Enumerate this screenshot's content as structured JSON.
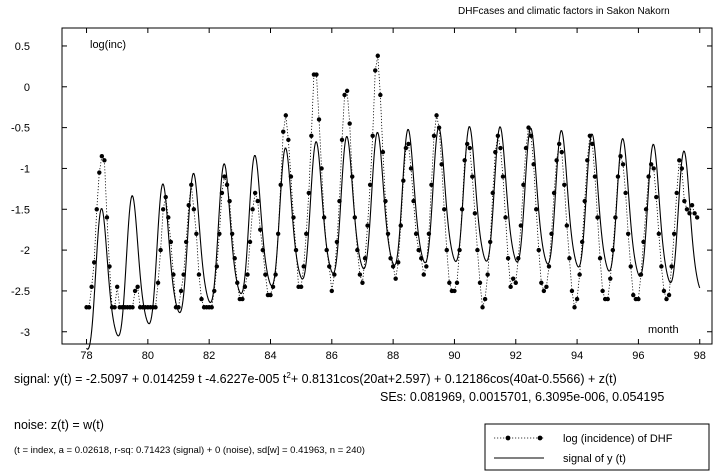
{
  "header": {
    "title": "DHFcases and climatic factors in Sakon Nakorn"
  },
  "chart_data": {
    "type": "line",
    "title": "",
    "ylabel": "log(inc)",
    "xlabel": "month",
    "xlim": [
      77.2,
      98.4
    ],
    "ylim": [
      -3.15,
      0.72
    ],
    "x_ticks": [
      78,
      80,
      82,
      84,
      86,
      88,
      90,
      92,
      94,
      96,
      98
    ],
    "y_ticks": [
      0.5,
      0,
      -0.5,
      -1,
      -1.5,
      -2,
      -2.5,
      -3
    ],
    "x_tick_labels": [
      "78",
      "80",
      "82",
      "84",
      "86",
      "88",
      "90",
      "92",
      "94",
      "96",
      "98"
    ],
    "y_tick_labels": [
      "0.5",
      "0",
      "-0.5",
      "-1",
      "-1.5",
      "-2",
      "-2.5",
      "-3"
    ],
    "grid": false,
    "legend_position": "bottom-right",
    "series": [
      {
        "name": "log (incidence) of DHF",
        "style": "dotted line with filled circle markers",
        "color": "#000000",
        "x_start": 78.0,
        "x_step": 0.08333,
        "values": [
          -2.7,
          -2.7,
          -2.45,
          -2.15,
          -1.5,
          -1.05,
          -0.85,
          -0.9,
          -1.6,
          -2.2,
          -2.7,
          -2.7,
          -2.45,
          -2.7,
          -2.7,
          -2.7,
          -2.7,
          -2.7,
          -2.7,
          -2.5,
          -2.45,
          -2.7,
          -2.7,
          -2.7,
          -2.7,
          -2.7,
          -2.7,
          -2.7,
          -2.4,
          -2.0,
          -1.5,
          -1.35,
          -1.6,
          -1.9,
          -2.3,
          -2.7,
          -2.7,
          -2.5,
          -2.3,
          -1.9,
          -1.45,
          -1.2,
          -1.5,
          -1.8,
          -2.3,
          -2.6,
          -2.7,
          -2.7,
          -2.7,
          -2.7,
          -2.5,
          -2.2,
          -1.8,
          -1.3,
          -1.1,
          -1.2,
          -1.4,
          -1.8,
          -2.1,
          -2.4,
          -2.6,
          -2.6,
          -2.45,
          -2.3,
          -1.9,
          -1.5,
          -1.3,
          -1.4,
          -1.75,
          -2.0,
          -2.3,
          -2.55,
          -2.55,
          -2.45,
          -2.3,
          -1.8,
          -1.2,
          -0.55,
          -0.35,
          -0.65,
          -1.1,
          -1.6,
          -2.0,
          -2.45,
          -2.45,
          -2.2,
          -1.8,
          -1.3,
          -0.6,
          0.15,
          0.15,
          -0.4,
          -1.0,
          -1.6,
          -2.0,
          -2.2,
          -2.5,
          -2.3,
          -1.9,
          -1.4,
          -0.65,
          -0.1,
          -0.05,
          -0.45,
          -1.1,
          -1.6,
          -2.0,
          -2.3,
          -2.4,
          -2.1,
          -1.7,
          -1.2,
          -0.6,
          0.2,
          0.38,
          -0.1,
          -0.8,
          -1.4,
          -1.8,
          -2.1,
          -2.2,
          -2.35,
          -2.15,
          -1.7,
          -1.15,
          -0.75,
          -0.7,
          -1.0,
          -1.4,
          -1.8,
          -2.0,
          -2.1,
          -2.3,
          -2.2,
          -1.8,
          -1.2,
          -0.6,
          -0.35,
          -0.5,
          -0.95,
          -1.5,
          -2.0,
          -2.4,
          -2.5,
          -2.5,
          -2.4,
          -2.0,
          -1.5,
          -0.9,
          -0.7,
          -0.75,
          -1.1,
          -1.55,
          -2.0,
          -2.4,
          -2.7,
          -2.6,
          -2.3,
          -1.9,
          -1.3,
          -0.8,
          -0.6,
          -0.75,
          -1.1,
          -1.6,
          -2.1,
          -2.45,
          -2.35,
          -2.4,
          -2.1,
          -1.7,
          -1.2,
          -0.75,
          -0.5,
          -0.6,
          -0.95,
          -1.5,
          -2.0,
          -2.4,
          -2.5,
          -2.45,
          -2.2,
          -1.8,
          -1.3,
          -0.9,
          -0.7,
          -0.8,
          -1.2,
          -1.7,
          -2.1,
          -2.5,
          -2.7,
          -2.6,
          -2.3,
          -1.9,
          -1.4,
          -0.9,
          -0.6,
          -0.7,
          -1.1,
          -1.6,
          -2.1,
          -2.5,
          -2.6,
          -2.6,
          -2.35,
          -2.0,
          -1.6,
          -1.1,
          -0.85,
          -0.95,
          -1.3,
          -1.8,
          -2.2,
          -2.55,
          -2.6,
          -2.6,
          -2.3,
          -1.9,
          -1.5,
          -1.1,
          -0.95,
          -1.0,
          -1.35,
          -1.8,
          -2.2,
          -2.5,
          -2.6,
          -2.55,
          -2.2,
          -1.8,
          -1.3,
          -0.9,
          -1.0,
          -1.4,
          -1.5,
          -1.55,
          -1.45,
          -1.55,
          -1.6
        ]
      },
      {
        "name": "signal of y (t)",
        "style": "solid line",
        "color": "#000000",
        "x_range": [
          78.0,
          98.0
        ]
      }
    ]
  },
  "equations": {
    "signal_prefix": "signal: y(t) = -2.5097 + 0.014259 t -4.6227e-005 t",
    "signal_sup": "2",
    "signal_suffix": "+ 0.8131cos(20at+2.597) + 0.12186cos(40at-0.5566) + z(t)",
    "ses": "SEs: 0.081969, 0.0015701, 6.3095e-006, 0.054195",
    "noise": "noise:  z(t) =  w(t)",
    "stats": "(t = index, a = 0.02618, r-sq: 0.71423 (signal) + 0 (noise), sd[w] = 0.41963, n = 240)"
  },
  "colors": {
    "ink": "#000000",
    "background": "#ffffff"
  }
}
